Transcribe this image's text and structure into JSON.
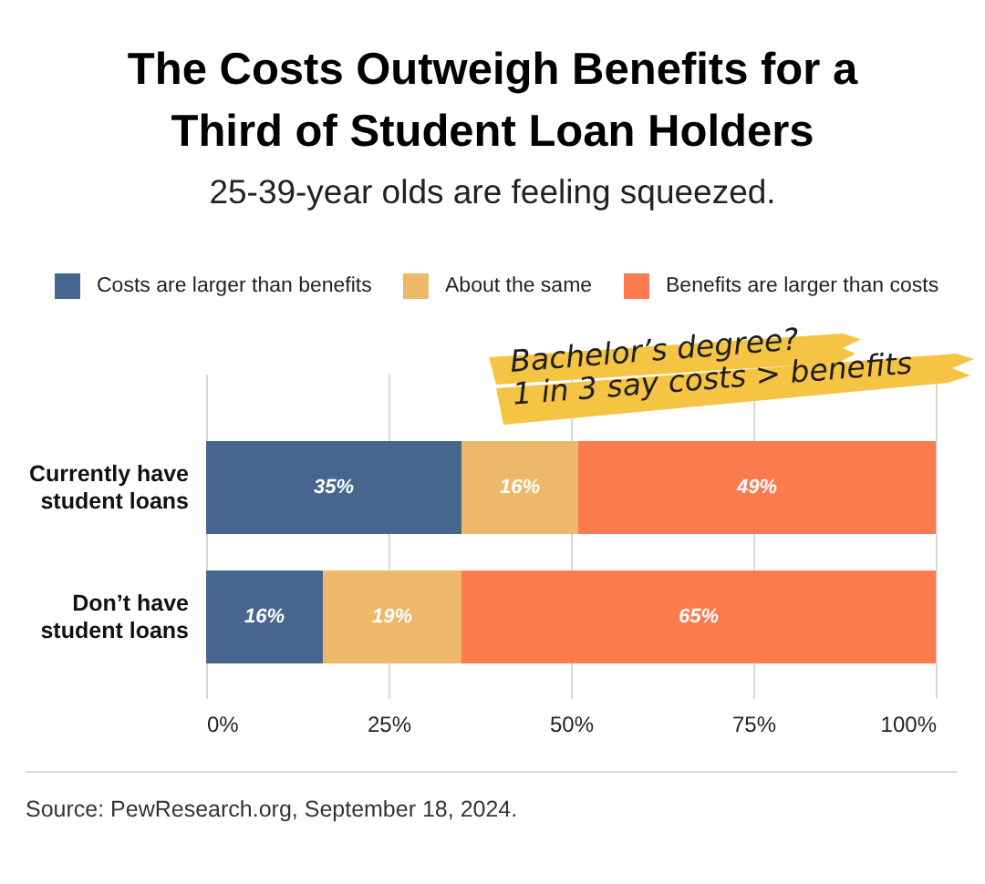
{
  "chart_data": {
    "type": "bar",
    "orientation": "horizontal",
    "stacked": true,
    "title": "The Costs Outweigh Benefits for a Third of Student Loan Holders",
    "subtitle": "25-39-year olds are feeling squeezed.",
    "categories": [
      "Currently have student loans",
      "Don’t have student loans"
    ],
    "series": [
      {
        "name": "Costs are larger than benefits",
        "color": "#46668f",
        "values": [
          35,
          16
        ],
        "value_labels": [
          "35%",
          "16%"
        ]
      },
      {
        "name": "About the same",
        "color": "#edb869",
        "values": [
          16,
          19
        ],
        "value_labels": [
          "16%",
          "19%"
        ]
      },
      {
        "name": "Benefits are larger than costs",
        "color": "#fb7a4e",
        "values": [
          49,
          65
        ],
        "value_labels": [
          "49%",
          "65%"
        ]
      }
    ],
    "xlim": [
      0,
      100
    ],
    "xticks": [
      {
        "value": 0,
        "label": "0%"
      },
      {
        "value": 25,
        "label": "25%"
      },
      {
        "value": 50,
        "label": "50%"
      },
      {
        "value": 75,
        "label": "75%"
      },
      {
        "value": 100,
        "label": "100%"
      }
    ],
    "grid": "x",
    "legend": "top",
    "annotations": [
      "Bachelor’s degree?\n1 in 3 say costs > benefits",
      "Source: PewResearch.org, September 18, 2024."
    ]
  }
}
